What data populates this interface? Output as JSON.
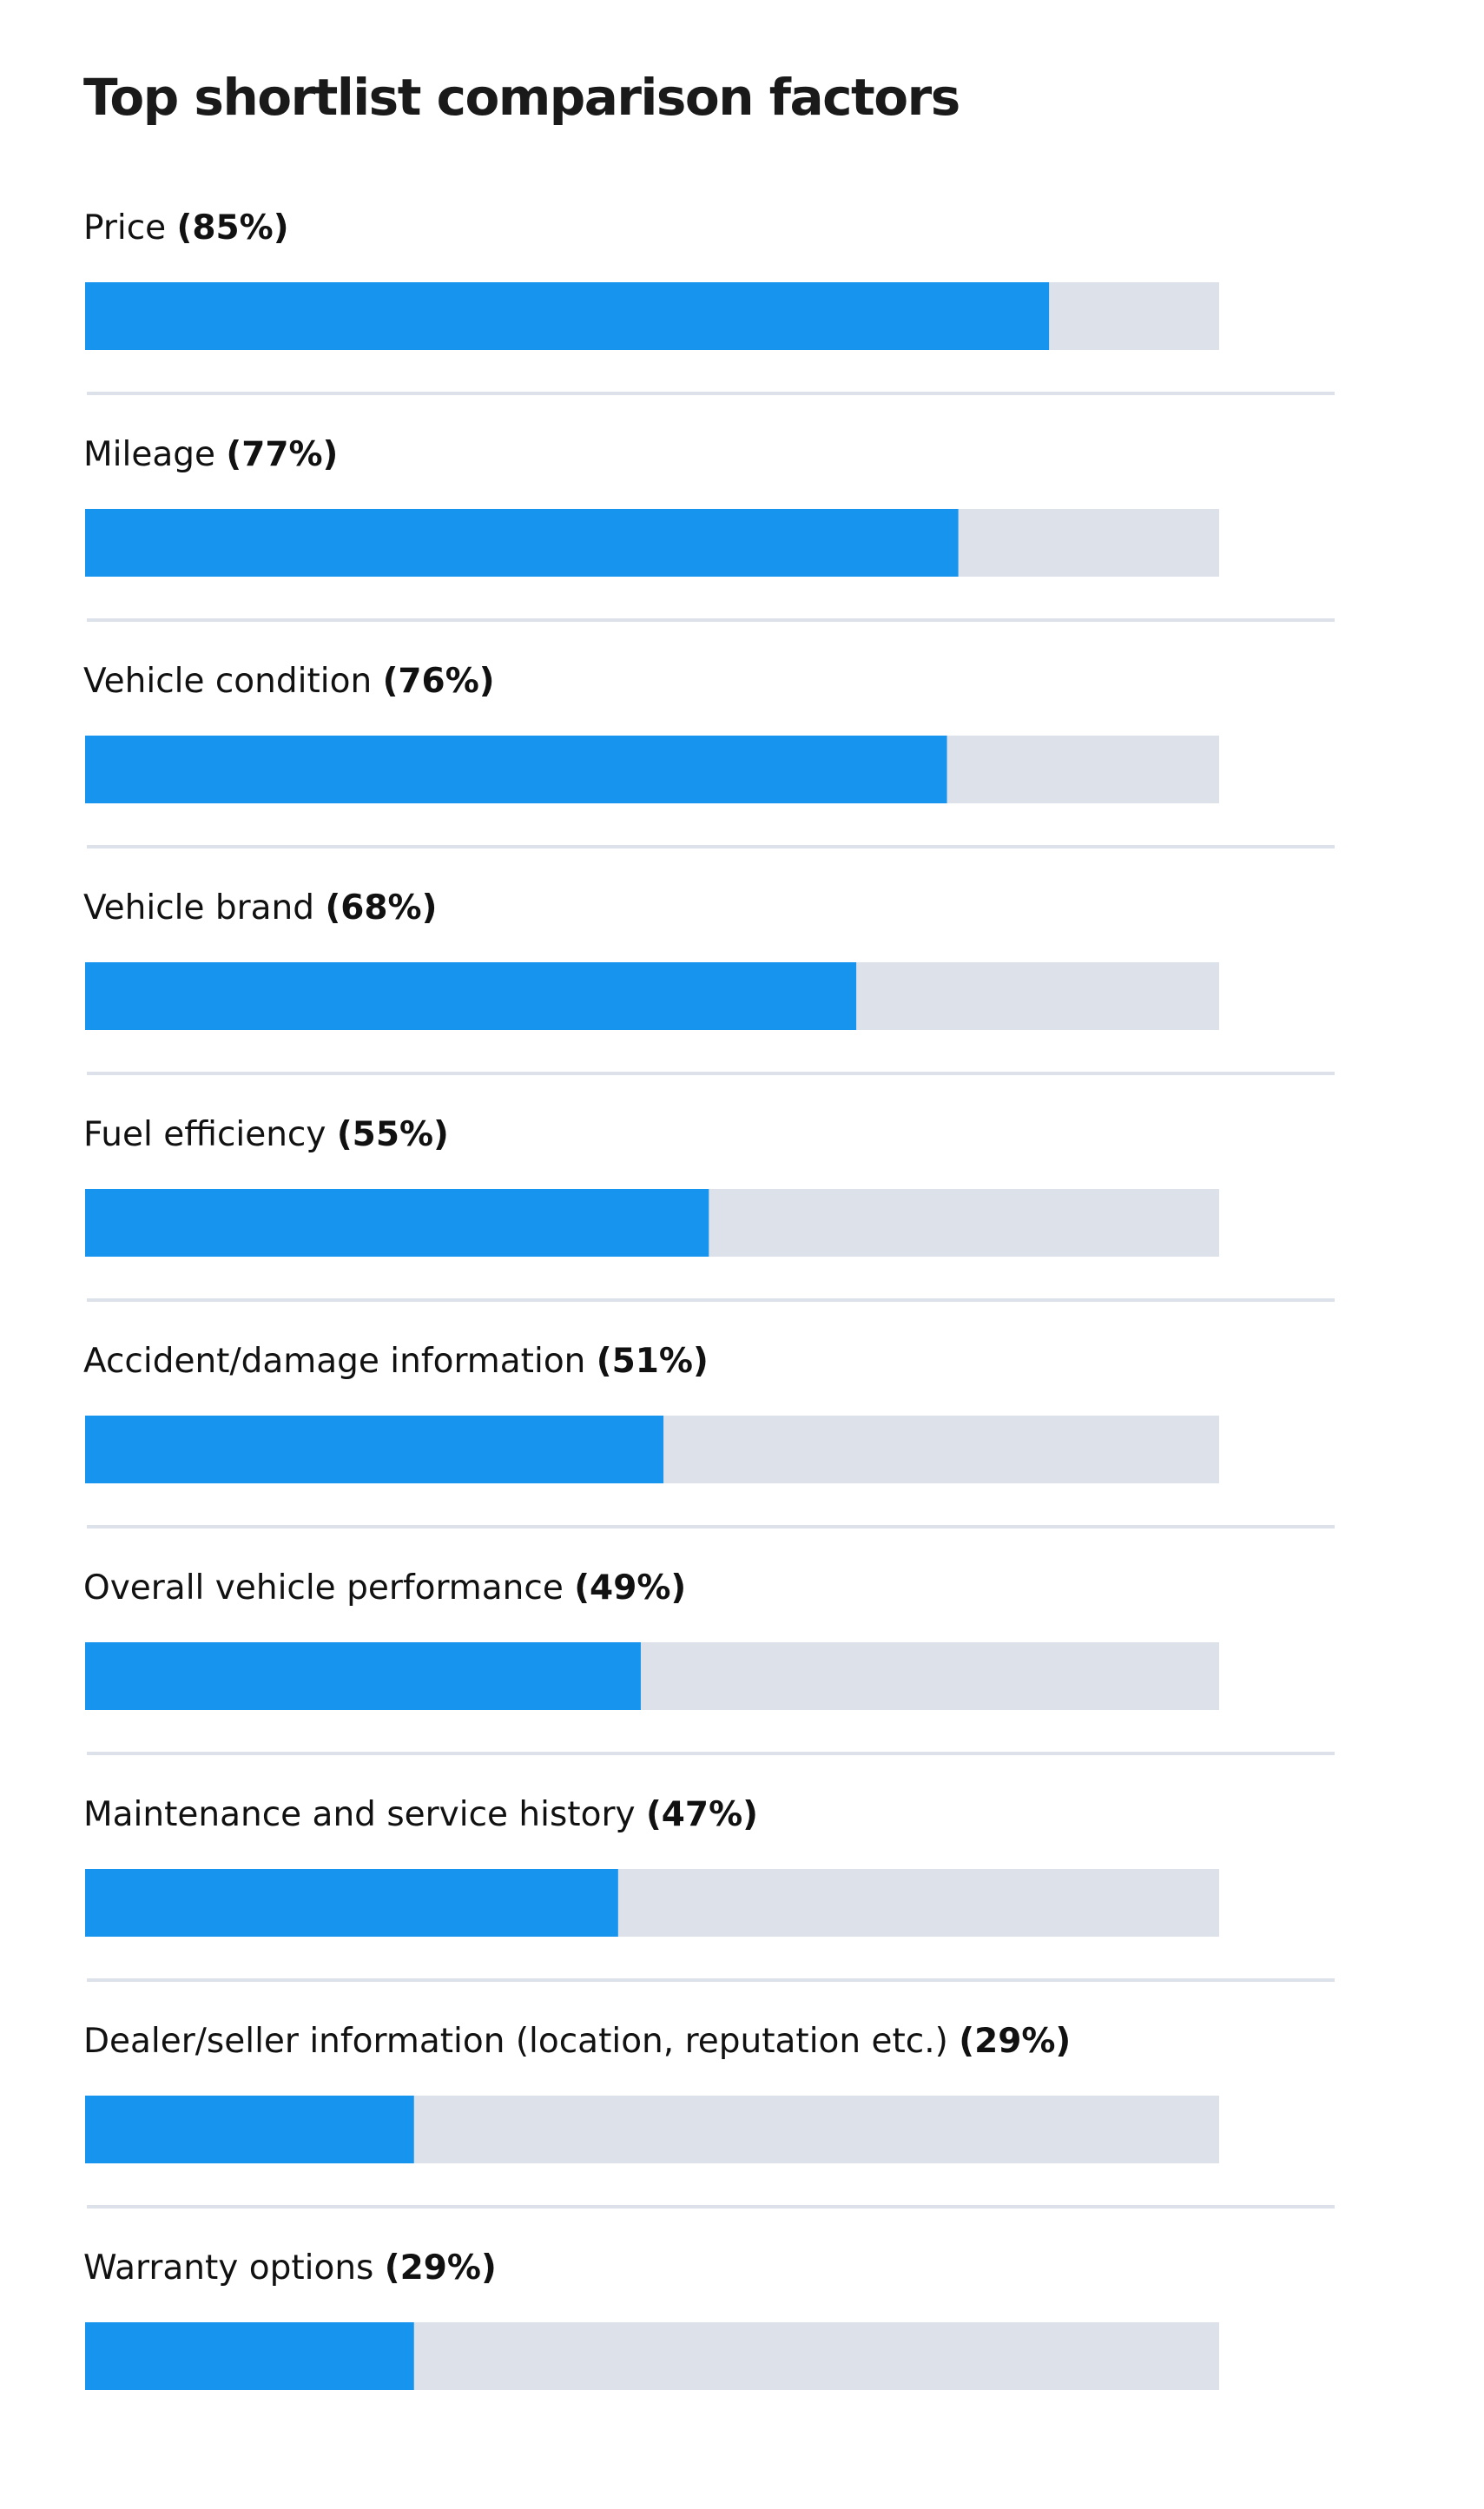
{
  "chart_data": {
    "type": "bar",
    "orientation": "horizontal",
    "title": "Top shortlist comparison factors",
    "categories": [
      "Price",
      "Mileage",
      "Vehicle condition",
      "Vehicle brand",
      "Fuel efficiency",
      "Accident/damage information",
      "Overall vehicle performance",
      "Maintenance and service history",
      "Dealer/seller information (location, reputation etc.)",
      "Warranty options"
    ],
    "values": [
      85,
      77,
      76,
      68,
      55,
      51,
      49,
      47,
      29,
      29
    ],
    "value_labels": [
      "(85%)",
      "(77%)",
      "(76%)",
      "(68%)",
      "(55%)",
      "(51%)",
      "(49%)",
      "(47%)",
      "(29%)",
      "(29%)"
    ],
    "unit": "%",
    "xlim": [
      0,
      100
    ],
    "grid": false,
    "legend": "none",
    "colors": {
      "bar": "#1795ee",
      "track": "#dde1ea",
      "divider": "#dde1ea",
      "text": "#111111"
    }
  }
}
